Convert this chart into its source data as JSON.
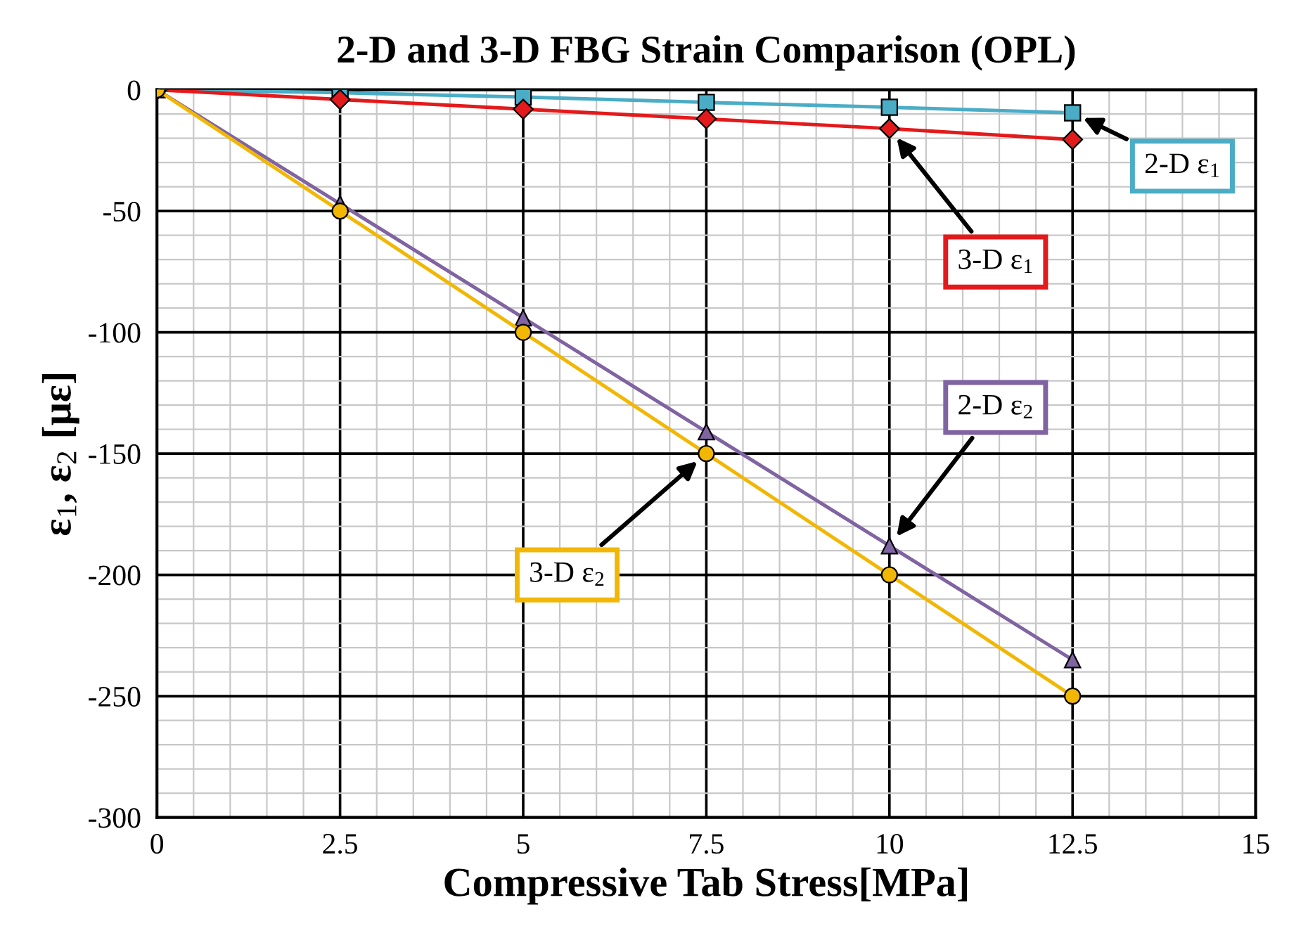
{
  "chart_data": {
    "type": "line",
    "title": "2-D and 3-D FBG Strain Comparison (OPL)",
    "xlabel": "Compressive Tab Stress[MPa]",
    "ylabel": "ε$_{1}$, ε$_{2}$ [με]",
    "x": [
      0,
      2.5,
      5,
      7.5,
      10,
      12.5
    ],
    "series": [
      {
        "name": "2-D ε$_{1}$",
        "color": "#4bacc6",
        "marker": "square",
        "values": [
          0,
          -1.2,
          -3,
          -5.2,
          -7.2,
          -9.5
        ]
      },
      {
        "name": "3-D ε$_{1}$",
        "color": "#e31a1c",
        "marker": "diamond",
        "values": [
          0,
          -4,
          -8,
          -12,
          -16,
          -20.5
        ]
      },
      {
        "name": "2-D ε$_{2}$",
        "color": "#8064a2",
        "marker": "triangle",
        "values": [
          0,
          -47,
          -94,
          -141,
          -188,
          -235
        ]
      },
      {
        "name": "3-D ε$_{2}$",
        "color": "#f2b705",
        "marker": "circle",
        "values": [
          0,
          -50,
          -100,
          -150,
          -200,
          -250
        ]
      }
    ],
    "xlim": [
      0,
      15
    ],
    "xticks": [
      0,
      2.5,
      5,
      7.5,
      10,
      12.5,
      15
    ],
    "ylim": [
      -300,
      0
    ],
    "yticks": [
      -300,
      -250,
      -200,
      -150,
      -100,
      -50,
      0
    ],
    "grid": true
  }
}
